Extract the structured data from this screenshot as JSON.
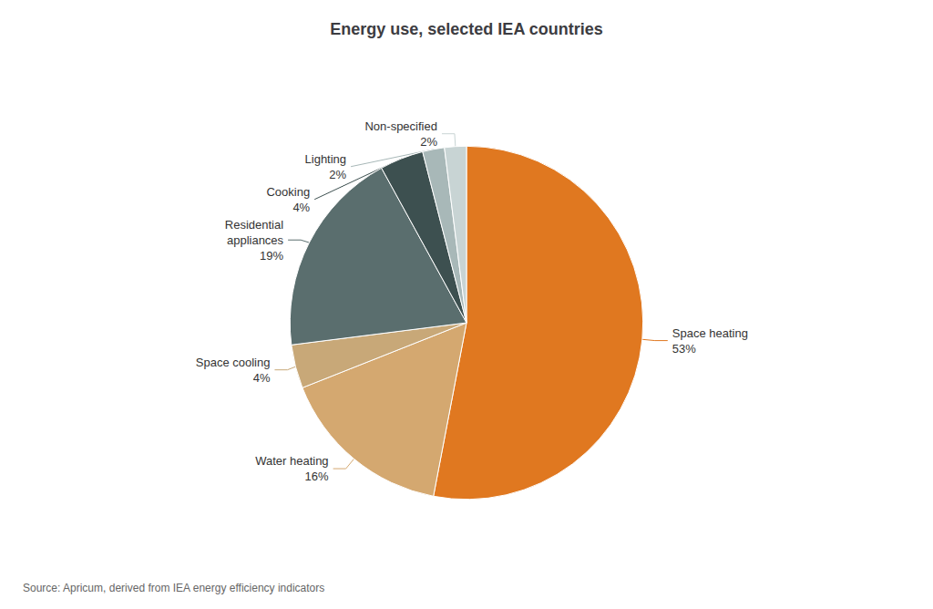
{
  "chart_data": {
    "type": "pie",
    "title": "Energy use, selected IEA countries",
    "annotations": [
      "Source: Apricum, derived from IEA energy efficiency indicators"
    ],
    "categories": [
      "Space heating",
      "Water heating",
      "Space cooling",
      "Residential\nappliances",
      "Cooking",
      "Lighting",
      "Non-specified"
    ],
    "values": [
      53,
      16,
      4,
      19,
      4,
      2,
      2
    ],
    "value_labels": [
      "53%",
      "16%",
      "4%",
      "19%",
      "4%",
      "2%",
      "2%"
    ],
    "colors": [
      "#E07820",
      "#D4A870",
      "#C8A878",
      "#5A6E6E",
      "#3D5050",
      "#A8B8B8",
      "#C8D4D4"
    ]
  }
}
